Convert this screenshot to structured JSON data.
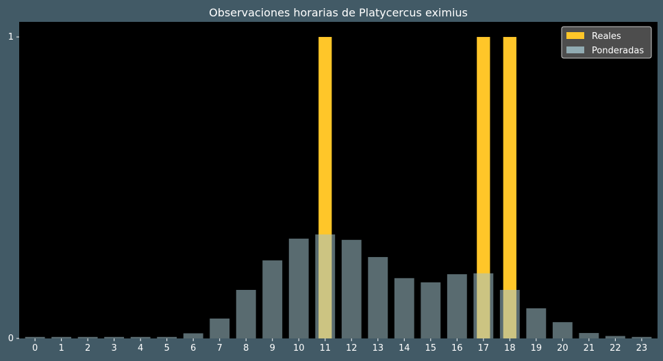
{
  "colors": {
    "background": "#425a66",
    "plot_area": "#000000",
    "real_bar": "#ffc629",
    "weighted_bar": "#a3c3cc",
    "text": "#ffffff"
  },
  "chart_data": {
    "type": "bar",
    "title": "Observaciones horarias de Platycercus eximius",
    "xlabel": "",
    "ylabel": "",
    "categories": [
      "0",
      "1",
      "2",
      "3",
      "4",
      "5",
      "6",
      "7",
      "8",
      "9",
      "10",
      "11",
      "12",
      "13",
      "14",
      "15",
      "16",
      "17",
      "18",
      "19",
      "20",
      "21",
      "22",
      "23"
    ],
    "yticks": [
      "0",
      "1"
    ],
    "ylim": [
      0,
      1.05
    ],
    "legend_position": "top-right",
    "grid": false,
    "series": [
      {
        "name": "Reales",
        "color": "#ffc629",
        "values": [
          0,
          0,
          0,
          0,
          0,
          0,
          0,
          0,
          0,
          0,
          0,
          1,
          0,
          0,
          0,
          0,
          0,
          1,
          1,
          0,
          0,
          0,
          0,
          0
        ]
      },
      {
        "name": "Ponderadas",
        "color": "#a3c3cc",
        "opacity": 0.55,
        "values": [
          0.005,
          0.005,
          0.005,
          0.005,
          0.005,
          0.005,
          0.017,
          0.066,
          0.161,
          0.259,
          0.331,
          0.345,
          0.327,
          0.27,
          0.2,
          0.186,
          0.213,
          0.216,
          0.161,
          0.1,
          0.054,
          0.018,
          0.008,
          0.005
        ]
      }
    ]
  }
}
